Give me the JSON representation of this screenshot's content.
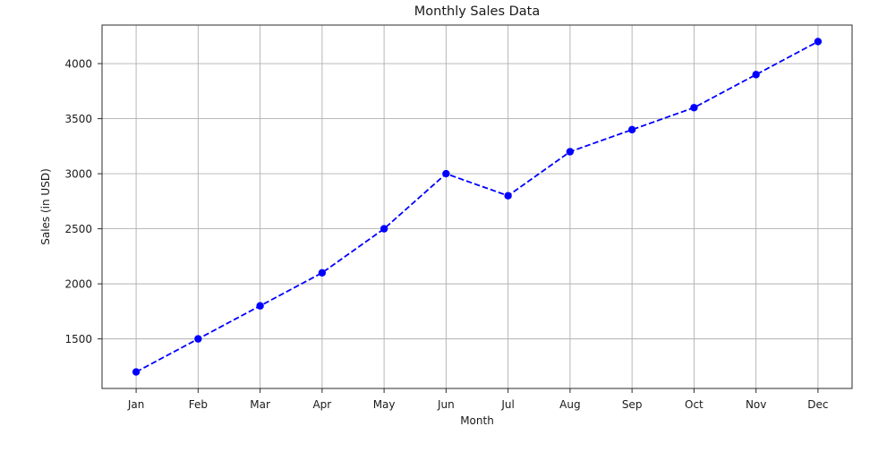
{
  "chart_data": {
    "type": "line",
    "title": "Monthly Sales Data",
    "xlabel": "Month",
    "ylabel": "Sales (in USD)",
    "categories": [
      "Jan",
      "Feb",
      "Mar",
      "Apr",
      "May",
      "Jun",
      "Jul",
      "Aug",
      "Sep",
      "Oct",
      "Nov",
      "Dec"
    ],
    "values": [
      1200,
      1500,
      1800,
      2100,
      2500,
      3000,
      2800,
      3200,
      3400,
      3600,
      3900,
      4200
    ],
    "yticks": [
      1500,
      2000,
      2500,
      3000,
      3500,
      4000
    ],
    "ylim": [
      1050,
      4350
    ],
    "xlim": [
      -0.55,
      11.55
    ],
    "grid": true,
    "legend": false,
    "line_color": "#0000ff",
    "line_style": "dashed",
    "marker": "circle",
    "grid_color": "#b0b0b0",
    "spine_color": "#2b2b2b",
    "text_color": "#1a1a1a",
    "background_color": "#ffffff"
  }
}
